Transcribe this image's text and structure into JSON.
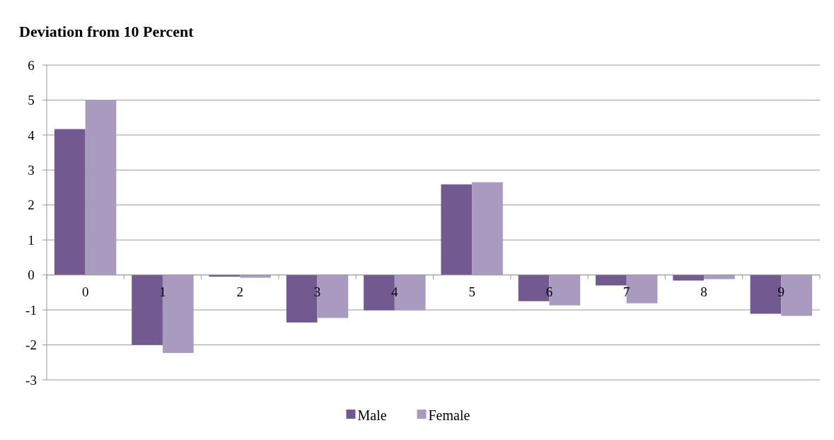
{
  "chart_data": {
    "type": "bar",
    "title": "Deviation from 10 Percent",
    "categories": [
      "0",
      "1",
      "2",
      "3",
      "4",
      "5",
      "6",
      "7",
      "8",
      "9"
    ],
    "series": [
      {
        "name": "Male",
        "color": "#725a91",
        "values": [
          4.17,
          -2.0,
          -0.05,
          -1.36,
          -1.01,
          2.59,
          -0.75,
          -0.3,
          -0.16,
          -1.11
        ]
      },
      {
        "name": "Female",
        "color": "#a99bc0",
        "values": [
          5.0,
          -2.23,
          -0.08,
          -1.23,
          -1.01,
          2.65,
          -0.87,
          -0.81,
          -0.12,
          -1.17
        ]
      }
    ],
    "ylim": [
      -3,
      6
    ],
    "yticks": [
      -3,
      -2,
      -1,
      0,
      1,
      2,
      3,
      4,
      5,
      6
    ],
    "grid": "y",
    "legend": "bottom"
  }
}
